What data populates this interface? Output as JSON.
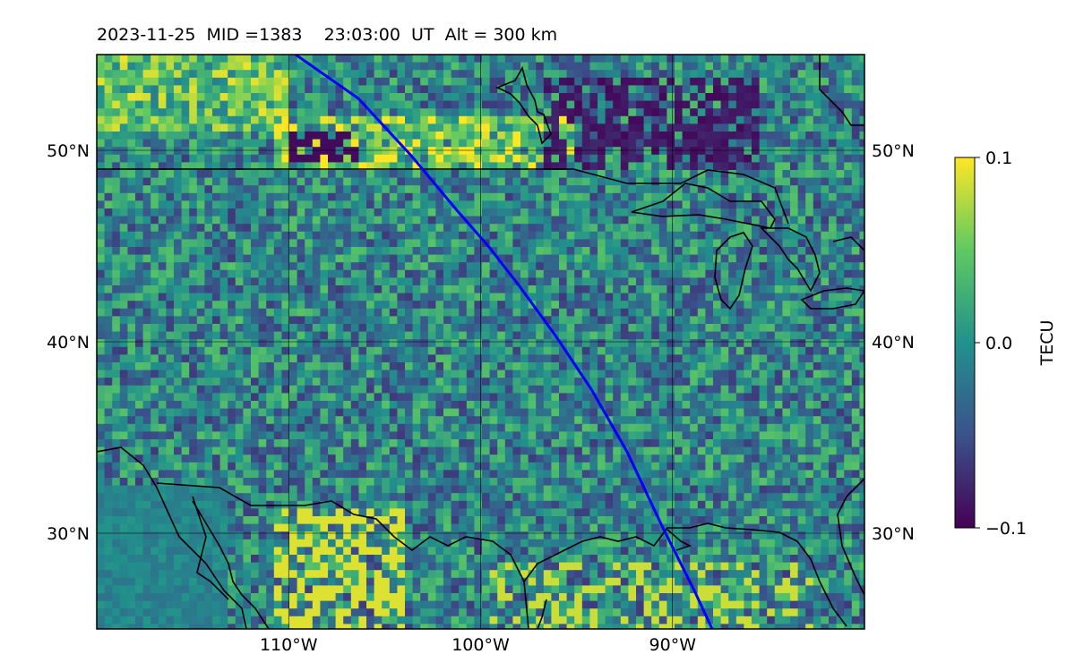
{
  "title": "2023-11-25  MID =1383    23:03:00  UT  Alt = 300 km",
  "map": {
    "projection": "lat-lon",
    "lon_range": [
      -120,
      -80
    ],
    "lat_range": [
      25,
      55
    ],
    "lon_ticks": [
      {
        "value": -110,
        "label": "110°W"
      },
      {
        "value": -100,
        "label": "100°W"
      },
      {
        "value": -90,
        "label": "90°W"
      }
    ],
    "lat_ticks": [
      {
        "value": 50,
        "label": "50°N"
      },
      {
        "value": 40,
        "label": "40°N"
      },
      {
        "value": 30,
        "label": "30°N"
      }
    ],
    "field": "TEC perturbation",
    "colormap": "viridis",
    "track_color": "#0000ff"
  },
  "colorbar": {
    "label": "TECU",
    "min": -0.1,
    "max": 0.1,
    "ticks": [
      {
        "value": 0.1,
        "label": "0.1"
      },
      {
        "value": 0.0,
        "label": "0.0"
      },
      {
        "value": -0.1,
        "label": "−0.1"
      }
    ]
  }
}
